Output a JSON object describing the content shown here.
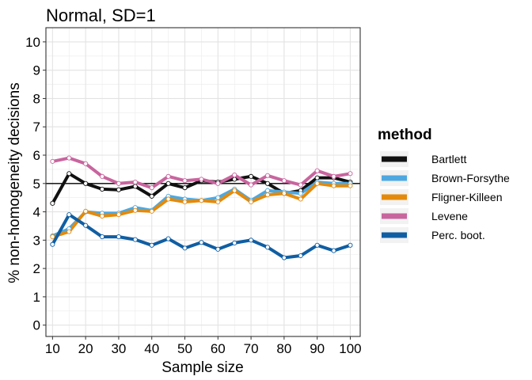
{
  "chart_data": {
    "type": "line",
    "title": "Normal, SD=1",
    "xlabel": "Sample size",
    "ylabel": "% non-homogeneity decisions",
    "xlim": [
      8,
      103
    ],
    "ylim": [
      -0.4,
      10.5
    ],
    "x_ticks": [
      10,
      20,
      30,
      40,
      50,
      60,
      70,
      80,
      90,
      100
    ],
    "y_ticks": [
      0,
      1,
      2,
      3,
      4,
      5,
      6,
      7,
      8,
      9,
      10
    ],
    "reference_line": 5,
    "grid": true,
    "legend": {
      "title": "method",
      "position": "right"
    },
    "x": [
      10,
      15,
      20,
      25,
      30,
      35,
      40,
      45,
      50,
      55,
      60,
      65,
      70,
      75,
      80,
      85,
      90,
      95,
      100
    ],
    "series": [
      {
        "name": "Bartlett",
        "color": "#111111",
        "values": [
          4.3,
          5.35,
          5.0,
          4.8,
          4.78,
          4.9,
          4.55,
          5.0,
          4.85,
          5.1,
          5.05,
          5.15,
          5.25,
          5.0,
          4.65,
          4.75,
          5.2,
          5.2,
          5.05
        ]
      },
      {
        "name": "Brown-Forsythe",
        "color": "#4EA8E0",
        "values": [
          3.15,
          3.4,
          4.0,
          3.95,
          3.95,
          4.15,
          4.05,
          4.55,
          4.45,
          4.4,
          4.5,
          4.8,
          4.4,
          4.75,
          4.7,
          4.65,
          5.05,
          5.0,
          5.0
        ]
      },
      {
        "name": "Fligner-Killeen",
        "color": "#E38A0C",
        "values": [
          3.12,
          3.3,
          4.02,
          3.85,
          3.9,
          4.05,
          4.02,
          4.45,
          4.35,
          4.4,
          4.35,
          4.75,
          4.35,
          4.6,
          4.65,
          4.45,
          5.0,
          4.92,
          4.92
        ]
      },
      {
        "name": "Levene",
        "color": "#C8659E",
        "values": [
          5.78,
          5.9,
          5.7,
          5.25,
          5.0,
          5.05,
          4.85,
          5.25,
          5.1,
          5.15,
          5.0,
          5.3,
          4.95,
          5.28,
          5.1,
          4.95,
          5.45,
          5.25,
          5.35
        ]
      },
      {
        "name": "Perc. boot.",
        "color": "#0F5EA3",
        "values": [
          2.85,
          3.9,
          3.52,
          3.12,
          3.12,
          3.02,
          2.82,
          3.05,
          2.72,
          2.92,
          2.68,
          2.9,
          3.0,
          2.75,
          2.38,
          2.45,
          2.82,
          2.63,
          2.82
        ]
      }
    ]
  }
}
